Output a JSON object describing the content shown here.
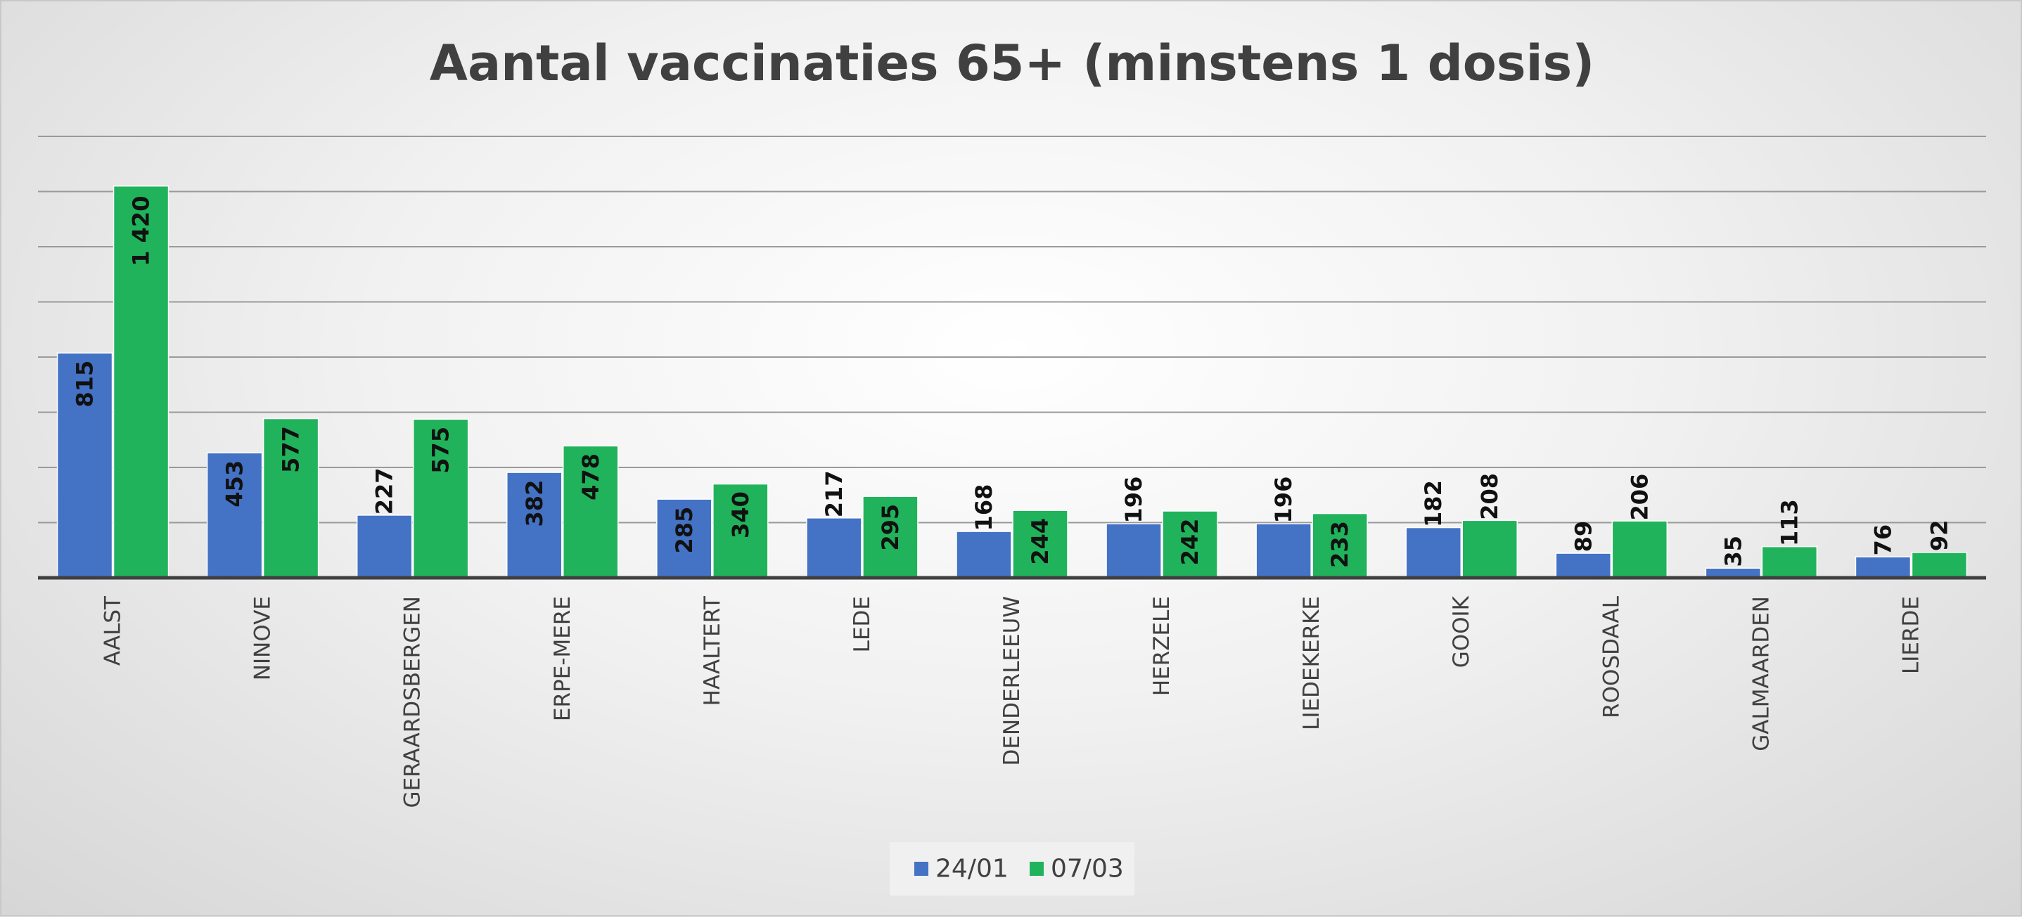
{
  "chart_data": {
    "type": "bar",
    "title": "Aantal vaccinaties 65+ (minstens 1 dosis)",
    "xlabel": "",
    "ylabel": "",
    "categories": [
      "AALST",
      "NINOVE",
      "GERAARDSBERGEN",
      "ERPE-MERE",
      "HAALTERT",
      "LEDE",
      "DENDERLEEUW",
      "HERZELE",
      "LIEDEKERKE",
      "GOOIK",
      "ROOSDAAL",
      "GALMAARDEN",
      "LIERDE"
    ],
    "series": [
      {
        "name": "24/01",
        "color": "#4472c4",
        "values": [
          815,
          453,
          227,
          382,
          285,
          217,
          168,
          196,
          196,
          182,
          89,
          35,
          76
        ]
      },
      {
        "name": "07/03",
        "color": "#21b35b",
        "values": [
          1420,
          577,
          575,
          478,
          340,
          295,
          244,
          242,
          233,
          208,
          206,
          113,
          92
        ]
      }
    ],
    "value_labels": [
      [
        "815",
        "453",
        "227",
        "382",
        "285",
        "217",
        "168",
        "196",
        "196",
        "182",
        "89",
        "35",
        "76"
      ],
      [
        "1 420",
        "577",
        "575",
        "478",
        "340",
        "295",
        "244",
        "242",
        "233",
        "208",
        "206",
        "113",
        "92"
      ]
    ],
    "ylim": [
      0,
      1600
    ],
    "gridline_step": 200,
    "grid": true,
    "axis_tick_labels_visible": false,
    "legend_position": "bottom-center"
  }
}
